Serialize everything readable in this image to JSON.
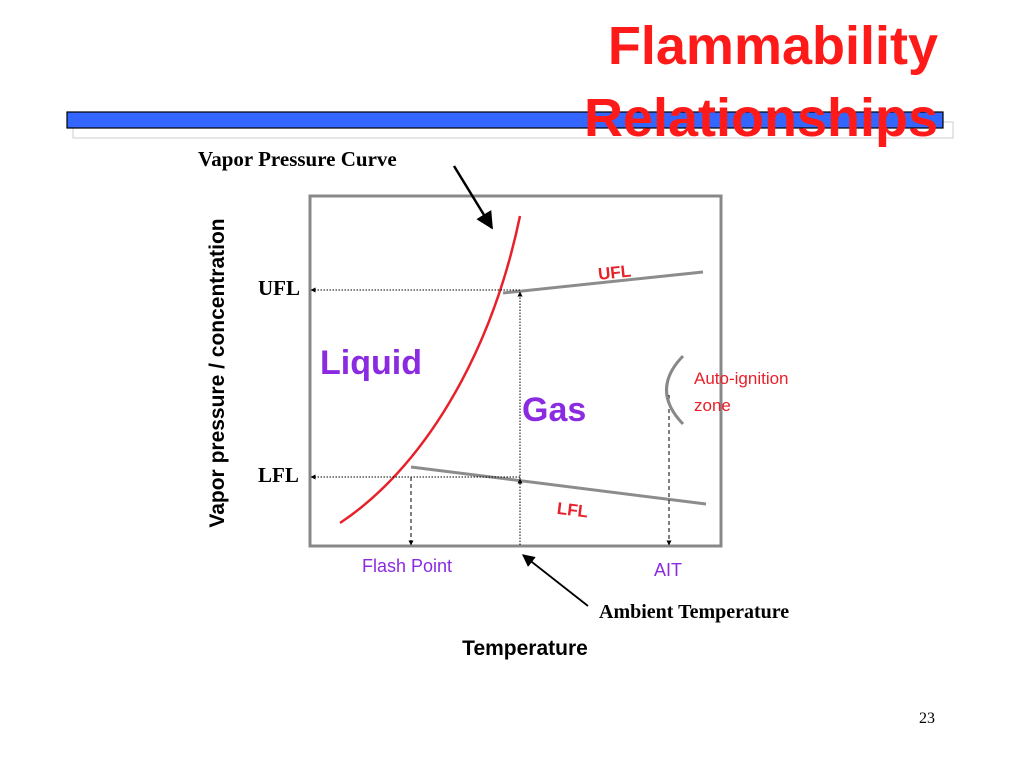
{
  "slide": {
    "title_line1": "Flammability",
    "title_line2": "Relationships",
    "page_number": "23"
  },
  "diagram": {
    "vapor_pressure_curve_label": "Vapor Pressure Curve",
    "y_axis_label": "Vapor pressure / concentration",
    "x_axis_label": "Temperature",
    "ufl_axis_label": "UFL",
    "lfl_axis_label": "LFL",
    "liquid_label": "Liquid",
    "gas_label": "Gas",
    "ufl_line_label": "UFL",
    "lfl_line_label": "LFL",
    "auto_ignition_line1": "Auto-ignition",
    "auto_ignition_line2": "zone",
    "flash_point_label": "Flash Point",
    "ait_label": "AIT",
    "ambient_temperature_label": "Ambient Temperature"
  },
  "colors": {
    "title": "#ff1a1a",
    "vapor_curve": "#e8202a",
    "region_labels": "#8a2be2",
    "limit_lines": "#8c8c8c",
    "title_bar": "#3366ff"
  }
}
